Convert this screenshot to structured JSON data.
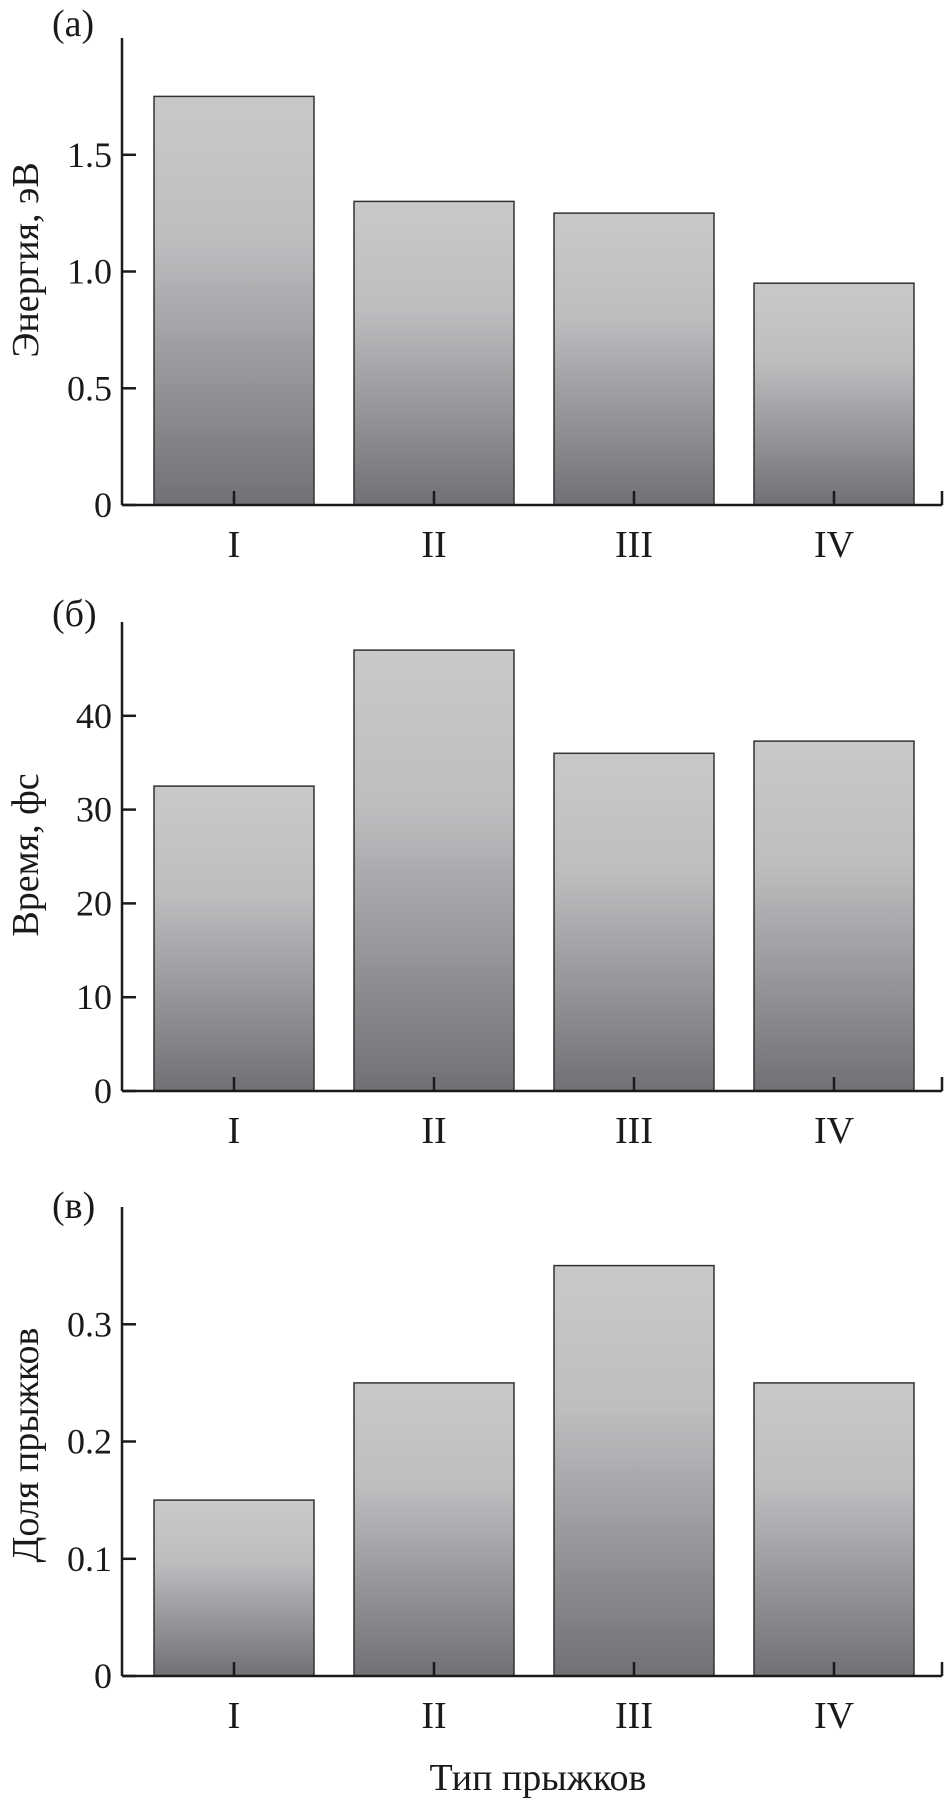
{
  "x_axis_title": "Тип прыжков",
  "chart_data": [
    {
      "type": "bar",
      "panel_label": "(а)",
      "categories": [
        "I",
        "II",
        "III",
        "IV"
      ],
      "values": [
        1.75,
        1.3,
        1.25,
        0.95
      ],
      "ylabel": "Энергия, эВ",
      "xlabel": "",
      "ylim": [
        0,
        2.0
      ],
      "yticks": [
        0,
        0.5,
        1.0,
        1.5
      ],
      "ytick_labels": [
        "0",
        "0.5",
        "1.0",
        "1.5"
      ],
      "grid": false
    },
    {
      "type": "bar",
      "panel_label": "(б)",
      "categories": [
        "I",
        "II",
        "III",
        "IV"
      ],
      "values": [
        32.5,
        47.0,
        36.0,
        37.3
      ],
      "ylabel": "Время, фс",
      "xlabel": "",
      "ylim": [
        0,
        50
      ],
      "yticks": [
        0,
        10,
        20,
        30,
        40
      ],
      "ytick_labels": [
        "0",
        "10",
        "20",
        "30",
        "40"
      ],
      "grid": false
    },
    {
      "type": "bar",
      "panel_label": "(в)",
      "categories": [
        "I",
        "II",
        "III",
        "IV"
      ],
      "values": [
        0.15,
        0.25,
        0.35,
        0.25
      ],
      "ylabel": "Доля прыжков",
      "xlabel": "Тип прыжков",
      "ylim": [
        0,
        0.4
      ],
      "yticks": [
        0,
        0.1,
        0.2,
        0.3
      ],
      "ytick_labels": [
        "0",
        "0.1",
        "0.2",
        "0.3"
      ],
      "grid": false
    }
  ],
  "colors": {
    "bar_top": "#c8c9cb",
    "bar_bottom": "#707174",
    "axis": "#1a1a1a"
  }
}
